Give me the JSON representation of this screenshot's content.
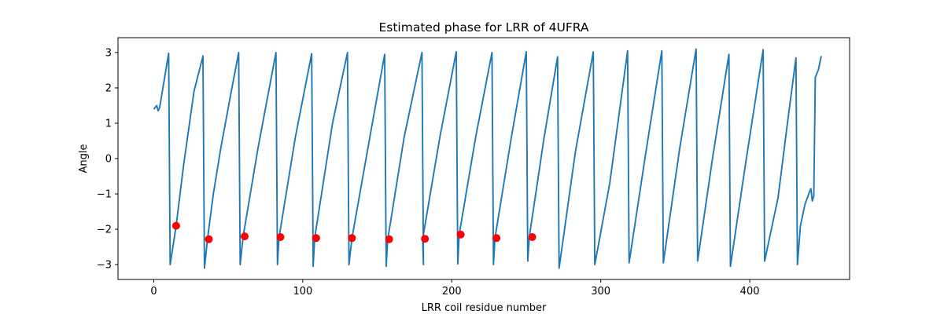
{
  "chart_data": {
    "type": "line",
    "title": "Estimated phase for LRR of 4UFRA",
    "xlabel": "LRR coil residue number",
    "ylabel": "Angle",
    "xlim": [
      -24,
      467
    ],
    "ylim": [
      -3.42,
      3.42
    ],
    "xticks": [
      0,
      100,
      200,
      300,
      400
    ],
    "yticks": [
      -3,
      -2,
      -1,
      0,
      1,
      2,
      3
    ],
    "grid": false,
    "colors": {
      "line": "#1f77b4",
      "markers": "#ff0000",
      "axes": "#000000"
    },
    "series": [
      {
        "kind": "line",
        "points": [
          [
            0,
            1.4
          ],
          [
            2,
            1.5
          ],
          [
            3,
            1.35
          ],
          [
            4,
            1.45
          ],
          [
            10,
            2.98
          ],
          [
            11,
            -3.0
          ],
          [
            15,
            -1.9
          ],
          [
            20,
            -0.2
          ],
          [
            27,
            1.9
          ],
          [
            33,
            2.9
          ],
          [
            34,
            -3.1
          ],
          [
            36,
            -2.3
          ],
          [
            40,
            -1.0
          ],
          [
            45,
            0.3
          ],
          [
            52,
            1.9
          ],
          [
            57,
            3.0
          ],
          [
            58,
            -3.0
          ],
          [
            60,
            -2.2
          ],
          [
            70,
            0.3
          ],
          [
            82,
            3.0
          ],
          [
            83,
            -3.0
          ],
          [
            84,
            -2.25
          ],
          [
            95,
            0.6
          ],
          [
            106,
            2.97
          ],
          [
            107,
            -3.05
          ],
          [
            108,
            -2.25
          ],
          [
            120,
            1.0
          ],
          [
            126,
            2.2
          ],
          [
            130,
            3.0
          ],
          [
            131,
            -3.0
          ],
          [
            133,
            -2.25
          ],
          [
            145,
            0.6
          ],
          [
            155,
            2.95
          ],
          [
            156,
            -3.05
          ],
          [
            157,
            -2.3
          ],
          [
            168,
            0.6
          ],
          [
            180,
            3.0
          ],
          [
            181,
            -3.0
          ],
          [
            180.5,
            -2.27
          ],
          [
            192,
            0.6
          ],
          [
            203,
            3.02
          ],
          [
            204,
            -2.98
          ],
          [
            205,
            -2.15
          ],
          [
            216,
            0.6
          ],
          [
            227,
            3.0
          ],
          [
            228,
            -3.0
          ],
          [
            229,
            -2.25
          ],
          [
            240,
            0.6
          ],
          [
            250,
            3.02
          ],
          [
            251,
            -2.9
          ],
          [
            252,
            -2.22
          ],
          [
            262,
            0.6
          ],
          [
            271,
            2.88
          ],
          [
            272,
            -3.1
          ],
          [
            283,
            0.2
          ],
          [
            295,
            3.02
          ],
          [
            296,
            -3.0
          ],
          [
            306,
            -0.7
          ],
          [
            318,
            3.05
          ],
          [
            319,
            -2.95
          ],
          [
            330,
            0.1
          ],
          [
            341,
            3.05
          ],
          [
            342,
            -2.95
          ],
          [
            353,
            0.3
          ],
          [
            364,
            3.1
          ],
          [
            365,
            -2.9
          ],
          [
            375,
            0.0
          ],
          [
            386,
            2.95
          ],
          [
            387,
            -3.05
          ],
          [
            397,
            -0.2
          ],
          [
            409,
            3.08
          ],
          [
            410,
            -2.9
          ],
          [
            419,
            -1.1
          ],
          [
            425,
            0.9
          ],
          [
            431,
            2.85
          ],
          [
            432,
            -3.0
          ],
          [
            434,
            -1.9
          ],
          [
            437,
            -1.3
          ],
          [
            440,
            -0.95
          ],
          [
            441,
            -0.85
          ],
          [
            442,
            -1.2
          ],
          [
            443,
            -1.05
          ],
          [
            444,
            2.3
          ],
          [
            446,
            2.5
          ],
          [
            448,
            2.9
          ]
        ]
      },
      {
        "kind": "markers",
        "points": [
          [
            15,
            -1.9
          ],
          [
            37,
            -2.28
          ],
          [
            61,
            -2.2
          ],
          [
            85,
            -2.22
          ],
          [
            109,
            -2.25
          ],
          [
            133,
            -2.25
          ],
          [
            158,
            -2.28
          ],
          [
            182,
            -2.27
          ],
          [
            206,
            -2.15
          ],
          [
            230,
            -2.25
          ],
          [
            254,
            -2.22
          ]
        ]
      }
    ]
  }
}
